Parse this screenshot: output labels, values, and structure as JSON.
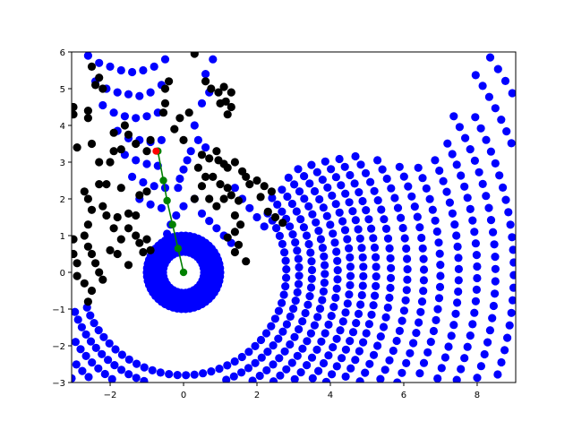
{
  "chart_data": {
    "type": "scatter",
    "title": "",
    "xlabel": "",
    "ylabel": "",
    "xlim": [
      -3.05,
      9.05
    ],
    "ylim": [
      -3,
      6
    ],
    "grid": false,
    "xticks": [
      -2,
      0,
      2,
      4,
      6,
      8
    ],
    "yticks": [
      -3,
      -2,
      -1,
      0,
      1,
      2,
      3,
      4,
      5,
      6
    ],
    "xtick_labels": [
      "−2",
      "0",
      "2",
      "4",
      "6",
      "8"
    ],
    "ytick_labels": [
      "−3",
      "−2",
      "−1",
      "0",
      "1",
      "2",
      "3",
      "4",
      "5",
      "6"
    ],
    "colors": {
      "obstacles": "#000000",
      "scan": "#0000ff",
      "path_line": "#008000",
      "path_points": "#008000",
      "goal": "#ff0000"
    },
    "ring": {
      "center": [
        0,
        0
      ],
      "radii": [
        0.56,
        0.72,
        0.86,
        1.0
      ],
      "counts": [
        30,
        38,
        46,
        54
      ]
    },
    "arcs": [
      {
        "r": 2.8,
        "a0": -160,
        "a1": 35,
        "step": 0.23
      },
      {
        "r": 3.15,
        "a0": -160,
        "a1": 40,
        "step": 0.23
      },
      {
        "r": 3.5,
        "a0": -155,
        "a1": 40,
        "step": 0.24
      },
      {
        "r": 3.85,
        "a0": -150,
        "a1": 42,
        "step": 0.24
      },
      {
        "r": 4.2,
        "a0": -140,
        "a1": 42,
        "step": 0.25
      },
      {
        "r": 4.55,
        "a0": -125,
        "a1": 40,
        "step": 0.25
      },
      {
        "r": 4.9,
        "a0": -110,
        "a1": 38,
        "step": 0.26
      },
      {
        "r": 5.25,
        "a0": -90,
        "a1": 36,
        "step": 0.26
      },
      {
        "r": 5.65,
        "a0": -70,
        "a1": 34,
        "step": 0.27
      },
      {
        "r": 6.1,
        "a0": -55,
        "a1": 30,
        "step": 0.28
      },
      {
        "r": 6.55,
        "a0": -45,
        "a1": 26,
        "step": 0.29
      },
      {
        "r": 7.0,
        "a0": -38,
        "a1": 24,
        "step": 0.3
      },
      {
        "r": 7.5,
        "a0": -32,
        "a1": 24,
        "step": 0.31
      },
      {
        "r": 8.0,
        "a0": -26,
        "a1": 26,
        "step": 0.32
      },
      {
        "r": 8.5,
        "a0": -22,
        "a1": 30,
        "step": 0.33
      },
      {
        "r": 9.0,
        "a0": -18,
        "a1": 28,
        "step": 0.34
      },
      {
        "r": 9.6,
        "a0": -14,
        "a1": 34,
        "step": 0.35
      },
      {
        "r": 10.2,
        "a0": 20,
        "a1": 35,
        "step": 0.36
      }
    ],
    "scan_points_extra": [
      [
        -2.6,
        5.9
      ],
      [
        -2.3,
        5.7
      ],
      [
        -2.0,
        5.6
      ],
      [
        -1.7,
        5.5
      ],
      [
        -1.4,
        5.45
      ],
      [
        -1.1,
        5.5
      ],
      [
        -0.8,
        5.6
      ],
      [
        -0.5,
        5.8
      ],
      [
        -2.4,
        5.2
      ],
      [
        -2.1,
        5.0
      ],
      [
        -1.8,
        4.9
      ],
      [
        -1.5,
        4.85
      ],
      [
        -1.2,
        4.8
      ],
      [
        -0.9,
        4.9
      ],
      [
        -0.6,
        5.1
      ],
      [
        -2.2,
        4.55
      ],
      [
        -1.9,
        4.35
      ],
      [
        -1.6,
        4.25
      ],
      [
        -1.3,
        4.2
      ],
      [
        -1.0,
        4.25
      ],
      [
        -0.7,
        4.35
      ],
      [
        -1.8,
        3.85
      ],
      [
        -1.5,
        3.65
      ],
      [
        -1.2,
        3.6
      ],
      [
        -0.9,
        3.55
      ],
      [
        -0.6,
        3.6
      ],
      [
        -1.6,
        3.2
      ],
      [
        -1.3,
        3.05
      ],
      [
        -1.0,
        2.95
      ],
      [
        -0.7,
        2.9
      ],
      [
        -1.4,
        2.6
      ],
      [
        -1.1,
        2.45
      ],
      [
        -0.8,
        2.35
      ],
      [
        -0.5,
        2.3
      ],
      [
        -1.2,
        2.0
      ],
      [
        -0.9,
        1.85
      ],
      [
        -0.6,
        1.75
      ],
      [
        0.2,
        3.3
      ],
      [
        0.1,
        3.05
      ],
      [
        0.0,
        2.8
      ],
      [
        -0.1,
        2.55
      ],
      [
        -0.15,
        2.3
      ],
      [
        0.3,
        2.0
      ],
      [
        0.0,
        1.8
      ],
      [
        -0.2,
        1.55
      ],
      [
        -0.35,
        1.3
      ],
      [
        -0.45,
        1.05
      ],
      [
        -0.5,
        0.8
      ],
      [
        0.5,
        1.6
      ],
      [
        0.7,
        1.4
      ],
      [
        0.9,
        1.2
      ],
      [
        1.1,
        1.0
      ],
      [
        1.3,
        0.8
      ],
      [
        1.4,
        2.3
      ],
      [
        1.6,
        2.0
      ],
      [
        1.8,
        1.75
      ],
      [
        2.0,
        1.5
      ],
      [
        2.2,
        1.25
      ],
      [
        0.4,
        3.6
      ],
      [
        0.6,
        3.4
      ],
      [
        0.3,
        4.0
      ],
      [
        0.5,
        4.6
      ],
      [
        0.7,
        4.9
      ],
      [
        0.6,
        5.4
      ],
      [
        0.8,
        5.8
      ]
    ],
    "obstacle_points": [
      [
        -3.0,
        4.5
      ],
      [
        -3.0,
        4.3
      ],
      [
        -2.9,
        3.4
      ],
      [
        -2.6,
        4.4
      ],
      [
        -2.6,
        4.2
      ],
      [
        -2.5,
        5.6
      ],
      [
        -2.4,
        5.1
      ],
      [
        -2.3,
        5.3
      ],
      [
        -2.2,
        5.0
      ],
      [
        -2.5,
        3.5
      ],
      [
        -2.3,
        3.0
      ],
      [
        -2.0,
        3.0
      ],
      [
        -1.9,
        3.3
      ],
      [
        -1.7,
        3.35
      ],
      [
        -2.3,
        2.4
      ],
      [
        -2.1,
        2.4
      ],
      [
        -1.7,
        2.3
      ],
      [
        -2.7,
        2.2
      ],
      [
        -2.6,
        2.0
      ],
      [
        -2.5,
        1.7
      ],
      [
        -2.2,
        1.8
      ],
      [
        -2.1,
        1.55
      ],
      [
        -1.8,
        1.5
      ],
      [
        -1.5,
        1.6
      ],
      [
        -1.3,
        1.55
      ],
      [
        -1.9,
        1.2
      ],
      [
        -1.5,
        1.2
      ],
      [
        -1.3,
        1.0
      ],
      [
        -1.2,
        0.8
      ],
      [
        -1.0,
        0.9
      ],
      [
        -1.1,
        0.55
      ],
      [
        -0.9,
        0.6
      ],
      [
        -2.6,
        1.3
      ],
      [
        -2.7,
        1.0
      ],
      [
        -2.6,
        0.7
      ],
      [
        -2.5,
        0.5
      ],
      [
        -2.4,
        0.25
      ],
      [
        -2.3,
        0.0
      ],
      [
        -2.2,
        -0.2
      ],
      [
        -2.5,
        -0.5
      ],
      [
        -2.7,
        -0.3
      ],
      [
        -2.9,
        -0.1
      ],
      [
        -2.6,
        -0.8
      ],
      [
        -3.0,
        0.9
      ],
      [
        -3.0,
        0.5
      ],
      [
        -2.9,
        0.25
      ],
      [
        -2.0,
        0.6
      ],
      [
        -1.8,
        0.5
      ],
      [
        -1.5,
        0.2
      ],
      [
        -1.7,
        0.9
      ],
      [
        -1.9,
        3.8
      ],
      [
        -1.6,
        4.0
      ],
      [
        -1.5,
        3.75
      ],
      [
        -1.3,
        3.5
      ],
      [
        -1.0,
        3.3
      ],
      [
        -0.9,
        3.6
      ],
      [
        -1.2,
        2.1
      ],
      [
        -1.0,
        2.2
      ],
      [
        -0.55,
        4.35
      ],
      [
        -0.5,
        4.6
      ],
      [
        -0.4,
        5.2
      ],
      [
        -0.5,
        5.0
      ],
      [
        0.3,
        5.95
      ],
      [
        0.6,
        5.2
      ],
      [
        0.75,
        5.0
      ],
      [
        0.95,
        4.9
      ],
      [
        1.1,
        5.05
      ],
      [
        1.3,
        4.9
      ],
      [
        1.0,
        4.6
      ],
      [
        1.3,
        4.5
      ],
      [
        1.2,
        4.3
      ],
      [
        1.15,
        4.65
      ],
      [
        0.15,
        4.35
      ],
      [
        -0.1,
        4.2
      ],
      [
        -0.25,
        3.9
      ],
      [
        0.0,
        3.6
      ],
      [
        0.5,
        3.2
      ],
      [
        0.7,
        3.1
      ],
      [
        0.9,
        3.3
      ],
      [
        0.95,
        3.05
      ],
      [
        1.1,
        2.95
      ],
      [
        1.2,
        2.85
      ],
      [
        1.4,
        3.0
      ],
      [
        1.6,
        2.75
      ],
      [
        1.7,
        2.6
      ],
      [
        1.8,
        2.4
      ],
      [
        2.0,
        2.5
      ],
      [
        2.2,
        2.35
      ],
      [
        2.4,
        2.2
      ],
      [
        2.1,
        2.05
      ],
      [
        0.8,
        2.6
      ],
      [
        1.0,
        2.4
      ],
      [
        1.2,
        2.3
      ],
      [
        1.3,
        2.1
      ],
      [
        1.5,
        1.95
      ],
      [
        1.1,
        2.0
      ],
      [
        0.9,
        1.8
      ],
      [
        0.7,
        2.0
      ],
      [
        0.3,
        2.0
      ],
      [
        0.5,
        2.35
      ],
      [
        1.4,
        1.55
      ],
      [
        1.55,
        1.3
      ],
      [
        1.4,
        1.1
      ],
      [
        1.2,
        0.95
      ],
      [
        1.5,
        0.75
      ],
      [
        1.4,
        0.55
      ],
      [
        2.3,
        1.65
      ],
      [
        2.5,
        1.5
      ],
      [
        2.7,
        1.35
      ],
      [
        0.6,
        2.6
      ],
      [
        0.4,
        2.85
      ],
      [
        1.7,
        0.3
      ]
    ],
    "path_points": [
      [
        0.0,
        0.0
      ],
      [
        -0.15,
        0.65
      ],
      [
        -0.3,
        1.3
      ],
      [
        -0.45,
        1.95
      ],
      [
        -0.55,
        2.5
      ],
      [
        -0.7,
        3.3
      ]
    ],
    "goal_point": [
      -0.75,
      3.3
    ]
  }
}
